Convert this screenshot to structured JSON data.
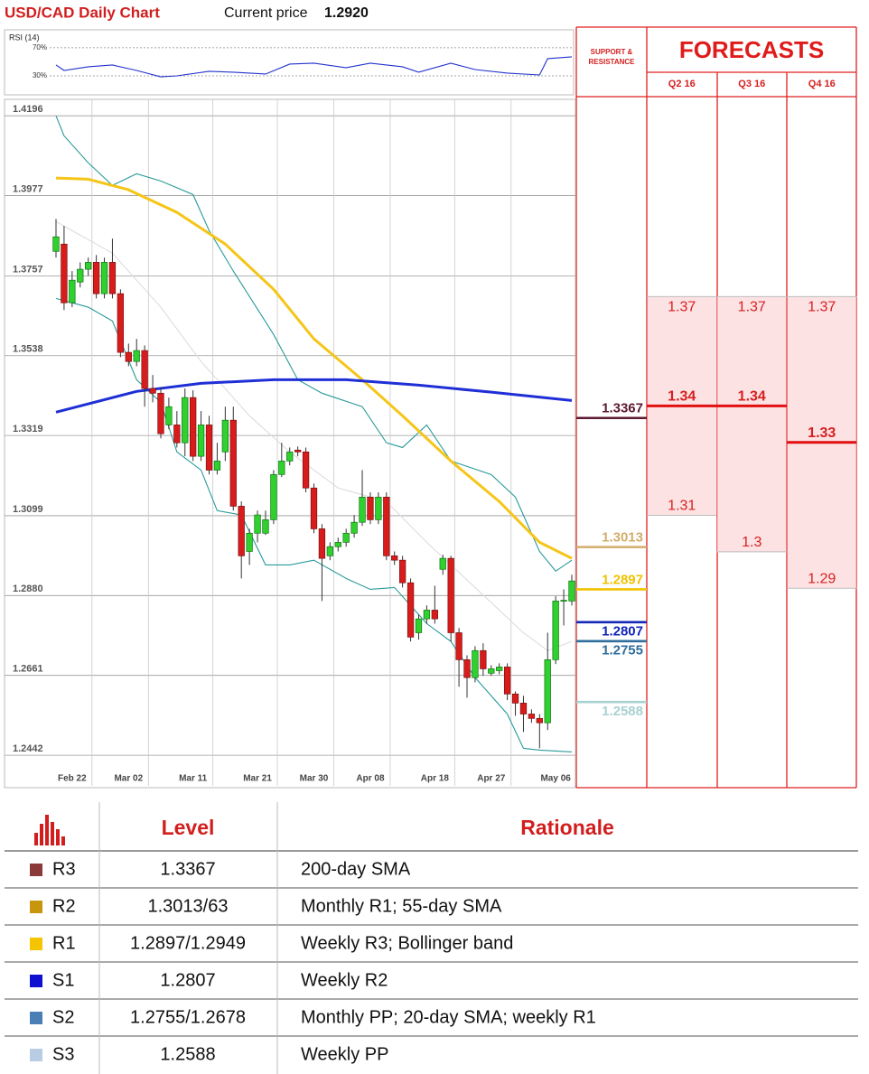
{
  "header": {
    "title": "USD/CAD Daily Chart",
    "price_label": "Current price",
    "current_price": "1.2920"
  },
  "chart_data": [
    {
      "type": "candlestick",
      "categories": [
        null,
        null,
        "Feb 22",
        null,
        null,
        null,
        null,
        null,
        null,
        "Mar 02",
        null,
        null,
        null,
        null,
        null,
        null,
        null,
        "Mar 11",
        null,
        null,
        null,
        null,
        null,
        null,
        null,
        "Mar 21",
        null,
        null,
        null,
        null,
        null,
        null,
        "Mar 30",
        null,
        null,
        null,
        null,
        null,
        null,
        "Apr 08",
        null,
        null,
        null,
        null,
        null,
        null,
        null,
        "Apr 18",
        null,
        null,
        null,
        null,
        null,
        null,
        "Apr 27",
        null,
        null,
        null,
        null,
        null,
        null,
        null,
        "May 06",
        null,
        null
      ],
      "open": [
        1.3824,
        1.3844,
        1.3683,
        1.374,
        1.3775,
        1.3794,
        1.3708,
        1.3794,
        1.3708,
        1.3547,
        1.3522,
        1.3552,
        1.3448,
        1.3435,
        1.3348,
        1.3348,
        1.3299,
        1.3423,
        1.3262,
        1.3348,
        1.3224,
        1.3274,
        1.3361,
        1.3125,
        1.3001,
        1.3051,
        1.3051,
        1.3088,
        1.3212,
        1.3249,
        1.3279,
        1.3274,
        1.3175,
        1.3063,
        1.2989,
        1.3014,
        1.3026,
        1.3051,
        1.3081,
        1.315,
        1.3088,
        1.315,
        1.2989,
        1.2977,
        1.2915,
        1.2778,
        1.2816,
        1.284,
        1.2952,
        1.2982,
        1.2778,
        1.2704,
        1.2655,
        1.2729,
        1.2667,
        1.2674,
        1.2684,
        1.261,
        1.2585,
        1.2555,
        1.2543,
        1.2531,
        1.2704,
        1.2865,
        1.2865
      ],
      "high": [
        1.3913,
        1.3894,
        1.377,
        1.3794,
        1.3807,
        1.3814,
        1.3807,
        1.3859,
        1.372,
        1.3571,
        1.3584,
        1.3566,
        1.3485,
        1.3452,
        1.3423,
        1.3386,
        1.3448,
        1.3443,
        1.3386,
        1.3373,
        1.3299,
        1.3398,
        1.3398,
        1.3138,
        1.3063,
        1.3113,
        1.3113,
        1.3224,
        1.3299,
        1.3286,
        1.3289,
        1.3286,
        1.3187,
        1.3076,
        1.3026,
        1.3039,
        1.3063,
        1.3101,
        1.3224,
        1.3163,
        1.3163,
        1.3163,
        1.3001,
        1.2989,
        1.2927,
        1.2828,
        1.2853,
        1.2907,
        1.2992,
        1.2989,
        1.2791,
        1.2716,
        1.2741,
        1.2749,
        1.2689,
        1.2694,
        1.2694,
        1.2617,
        1.2605,
        1.2568,
        1.2555,
        1.2778,
        1.2878,
        1.2897,
        1.2937
      ],
      "low": [
        1.3807,
        1.3663,
        1.3671,
        1.3725,
        1.3757,
        1.3695,
        1.3695,
        1.3695,
        1.3534,
        1.3509,
        1.3509,
        1.3398,
        1.341,
        1.3311,
        1.3336,
        1.3286,
        1.3262,
        1.3249,
        1.3249,
        1.3212,
        1.3212,
        1.3249,
        1.3113,
        1.2927,
        1.2964,
        1.3026,
        1.3046,
        1.3076,
        1.3205,
        1.3237,
        1.3262,
        1.3163,
        1.3051,
        1.2865,
        1.2977,
        1.3001,
        1.3014,
        1.3039,
        1.3071,
        1.3076,
        1.3076,
        1.2977,
        1.2964,
        1.2902,
        1.2754,
        1.2759,
        1.2803,
        1.2803,
        1.2937,
        1.2754,
        1.263,
        1.26,
        1.2642,
        1.266,
        1.266,
        1.2664,
        1.2593,
        1.255,
        1.2506,
        1.2531,
        1.2461,
        1.2511,
        1.2692,
        1.2798,
        1.2853
      ],
      "close": [
        1.3864,
        1.3683,
        1.3745,
        1.3775,
        1.3794,
        1.3708,
        1.3794,
        1.3708,
        1.3547,
        1.3522,
        1.3552,
        1.3448,
        1.3435,
        1.3324,
        1.3398,
        1.3299,
        1.3423,
        1.3262,
        1.3348,
        1.3224,
        1.3249,
        1.3361,
        1.3125,
        1.2989,
        1.3051,
        1.3101,
        1.3088,
        1.3212,
        1.3249,
        1.3274,
        1.3274,
        1.3175,
        1.3063,
        1.2982,
        1.3014,
        1.3026,
        1.3051,
        1.3081,
        1.315,
        1.3088,
        1.315,
        1.2989,
        1.2977,
        1.2915,
        1.2766,
        1.2816,
        1.284,
        1.2816,
        1.2982,
        1.2778,
        1.2704,
        1.2655,
        1.2729,
        1.2679,
        1.2679,
        1.2684,
        1.261,
        1.2585,
        1.2555,
        1.2543,
        1.2531,
        1.2704,
        1.2865,
        1.2867,
        1.292
      ],
      "up_color": "#2fd12f",
      "down_color": "#d81c1c",
      "overlays": [
        {
          "color": "#1f2fd6",
          "x": [
            0,
            10,
            18,
            27,
            36,
            45,
            54,
            64
          ],
          "values": [
            1.3383,
            1.344,
            1.3462,
            1.3472,
            1.3472,
            1.3457,
            1.3438,
            1.3415
          ]
        },
        {
          "color": "#f5c518",
          "x": [
            0,
            4,
            9,
            15,
            21,
            27,
            32,
            38,
            43,
            49,
            55,
            60,
            64
          ],
          "values": [
            1.4025,
            1.4022,
            1.3993,
            1.3931,
            1.3844,
            1.372,
            1.3584,
            1.3472,
            1.3373,
            1.3249,
            1.3138,
            1.3026,
            1.2982
          ]
        },
        {
          "color": "#2a9a9a",
          "x": [
            0,
            1,
            4,
            7,
            10,
            13,
            17,
            19,
            22,
            27,
            30,
            33,
            38,
            41,
            43,
            46,
            49,
            54,
            57,
            60,
            62,
            64
          ],
          "values": [
            1.4196,
            1.4141,
            1.4067,
            1.4005,
            1.4037,
            1.4017,
            1.398,
            1.3881,
            1.377,
            1.3596,
            1.3472,
            1.3435,
            1.3398,
            1.3299,
            1.3286,
            1.3348,
            1.3249,
            1.3212,
            1.315,
            1.3001,
            1.2947,
            1.2977
          ]
        },
        {
          "color": "#2a9a9a",
          "x": [
            0,
            2,
            4,
            7,
            10,
            13,
            15,
            18,
            20,
            23,
            26,
            29,
            32,
            36,
            39,
            42,
            46,
            49,
            52,
            56,
            58,
            60,
            64
          ],
          "values": [
            1.3695,
            1.3683,
            1.3671,
            1.3633,
            1.3472,
            1.341,
            1.3274,
            1.3224,
            1.3113,
            1.3101,
            1.2964,
            1.2964,
            1.2977,
            1.2927,
            1.2897,
            1.2902,
            1.2803,
            1.2754,
            1.2655,
            1.2555,
            1.2461,
            1.2456,
            1.2451
          ]
        },
        {
          "color": "#dddddd",
          "x": [
            0,
            7,
            13,
            18,
            24,
            29,
            35,
            41,
            46,
            52,
            58,
            61,
            64
          ],
          "values": [
            1.3906,
            1.3819,
            1.3671,
            1.3522,
            1.3373,
            1.3274,
            1.3175,
            1.3138,
            1.3026,
            1.2902,
            1.2778,
            1.2729,
            1.2754
          ]
        }
      ],
      "ylim": [
        1.2358,
        1.4241
      ],
      "yticks": [
        1.4196,
        1.3977,
        1.3757,
        1.3538,
        1.3319,
        1.3099,
        {
          "value": 1.288,
          "label": "1.2880"
        },
        1.2661,
        1.2442
      ],
      "grid": true,
      "levels": [
        {
          "value": 1.3367,
          "color": "#5c1830"
        },
        {
          "value": 1.3013,
          "color": "#d2ad6a"
        },
        {
          "value": 1.2897,
          "color": "#f2c200"
        },
        {
          "value": 1.2807,
          "color": "#1226b8"
        },
        {
          "value": 1.2755,
          "color": "#2f6e9c"
        },
        {
          "value": 1.2588,
          "color": "#a9d1d1"
        }
      ]
    },
    {
      "type": "line",
      "title": "RSI (14)",
      "xlim": [
        0,
        64
      ],
      "ylim": [
        3,
        93
      ],
      "yticks": [
        {
          "value": 70,
          "label": "70%"
        },
        {
          "value": 30,
          "label": "30%"
        }
      ],
      "series": [
        {
          "color": "#2233cc",
          "x": [
            0,
            1,
            4,
            7,
            10,
            13,
            15,
            19,
            22,
            26,
            29,
            32,
            36,
            39,
            43,
            45,
            49,
            52,
            56,
            60,
            61,
            64
          ],
          "values": [
            45.5,
            37.7,
            42.9,
            45.5,
            37.7,
            28.7,
            30.0,
            36.5,
            35.2,
            32.6,
            46.8,
            48.1,
            41.6,
            48.1,
            42.9,
            35.2,
            48.1,
            39.0,
            33.9,
            31.3,
            54.5,
            57.1
          ]
        }
      ]
    }
  ],
  "forecasts": {
    "support_title": "SUPPORT & RESISTANCE",
    "title": "FORECASTS",
    "columns": [
      {
        "name": "Q2 16",
        "high": 1.37,
        "mid": 1.34,
        "low": 1.31
      },
      {
        "name": "Q3 16",
        "high": 1.37,
        "mid": 1.34,
        "low": 1.3
      },
      {
        "name": "Q4 16",
        "high": 1.37,
        "mid": 1.33,
        "low": 1.29
      }
    ]
  },
  "table": {
    "header": [
      "Level",
      "Rationale"
    ],
    "colors": [
      "#8b3a3a",
      "#c8960c",
      "#f5c400",
      "#1010d0",
      "#4a7fb5",
      "#b8cce4"
    ],
    "rows": [
      [
        "R3",
        "1.3367",
        "200-day SMA"
      ],
      [
        "R2",
        "1.3013/63",
        "Monthly R1; 55-day SMA"
      ],
      [
        "R1",
        "1.2897/1.2949",
        "Weekly R3; Bollinger band"
      ],
      [
        "S1",
        "1.2807",
        "Weekly R2"
      ],
      [
        "S2",
        "1.2755/1.2678",
        "Monthly PP; 20-day SMA; weekly R1"
      ],
      [
        "S3",
        "1.2588",
        "Weekly PP"
      ]
    ]
  }
}
